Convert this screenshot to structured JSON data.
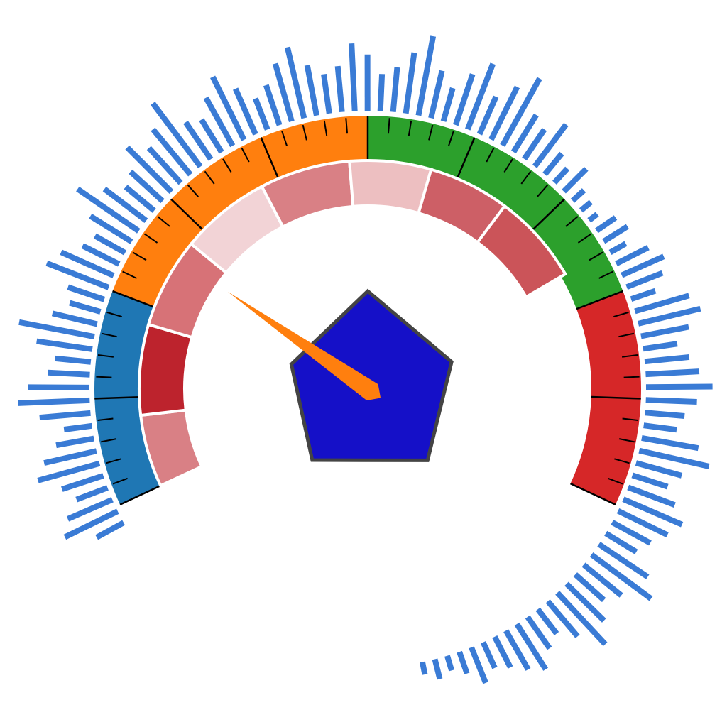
{
  "chart_data": {
    "type": "gauge",
    "angle_range_deg": [
      -115,
      115
    ],
    "value_range": [
      0,
      100
    ],
    "pointer_value": 26,
    "colors": {
      "pointer": "#ff7f0e",
      "center_polygon_fill": "#1510c8",
      "center_polygon_stroke": "#444444",
      "outer_bars": "#3a7bd5",
      "major_tick": "#000000",
      "minor_tick": "#000000"
    },
    "outer_band": [
      {
        "from": 0,
        "to": 20,
        "color": "#1f77b4"
      },
      {
        "from": 20,
        "to": 50,
        "color": "#ff7f0e"
      },
      {
        "from": 50,
        "to": 80,
        "color": "#2ca02c"
      },
      {
        "from": 80,
        "to": 100,
        "color": "#d62728"
      }
    ],
    "inner_band": [
      {
        "from": 0,
        "to": 8,
        "color": "#d98085"
      },
      {
        "from": 8,
        "to": 18,
        "color": "#bd232d"
      },
      {
        "from": 18,
        "to": 28,
        "color": "#d77277"
      },
      {
        "from": 28,
        "to": 38,
        "color": "#f2d3d6"
      },
      {
        "from": 38,
        "to": 48,
        "color": "#d98085"
      },
      {
        "from": 48,
        "to": 57,
        "color": "#edbfc1"
      },
      {
        "from": 57,
        "to": 66,
        "color": "#cd5f66"
      },
      {
        "from": 66,
        "to": 76,
        "color": "#cb5459"
      }
    ],
    "major_ticks": [
      0,
      10,
      20,
      30,
      40,
      50,
      60,
      70,
      80,
      90,
      100
    ],
    "minor_tick_step": 2,
    "center_polygon": {
      "values": [
        1.0,
        0.9,
        0.95,
        0.92,
        0.82
      ],
      "angles_deg": [
        0,
        72,
        140,
        218,
        288
      ]
    },
    "outer_bars": [
      0.24,
      0.46,
      0.38,
      0.26,
      0.34,
      0.5,
      0.42,
      0.3,
      0.22,
      0.4,
      0.56,
      0.48,
      0.33,
      0.28,
      0.44,
      0.6,
      0.36,
      0.25,
      0.3,
      0.52,
      0.45,
      0.32,
      0.27,
      0.38,
      0.58,
      0.41,
      0.29,
      0.34,
      0.49,
      0.37,
      0.46,
      0.62,
      0.35,
      0.3,
      0.43,
      0.55,
      0.39,
      0.26,
      0.33,
      0.47,
      0.57,
      0.4,
      0.31,
      0.36,
      0.53,
      0.44,
      0.29,
      0.35,
      0.48,
      0.63,
      0.38,
      0.27,
      0.42,
      0.55,
      0.32,
      0.46,
      0.6,
      0.34,
      0.28,
      0.41,
      0.21,
      0.15,
      0.25,
      0.12,
      0.1,
      0.08,
      0.18,
      0.22,
      0.14,
      0.28,
      0.36,
      0.3,
      0.2,
      0.44,
      0.5,
      0.38,
      0.27,
      0.35,
      0.42,
      0.52,
      0.4,
      0.31,
      0.26,
      0.45,
      0.56,
      0.37,
      0.29,
      0.39,
      0.5,
      0.43,
      0.34,
      0.28,
      0.46,
      0.58,
      0.38,
      0.3,
      0.41,
      0.55,
      0.36,
      0.24,
      0.3,
      0.42,
      0.35,
      0.27,
      0.22,
      0.3,
      0.18,
      0.12,
      0.16,
      0.1
    ],
    "outer_bars_angle_range_deg": [
      -120,
      170
    ]
  }
}
